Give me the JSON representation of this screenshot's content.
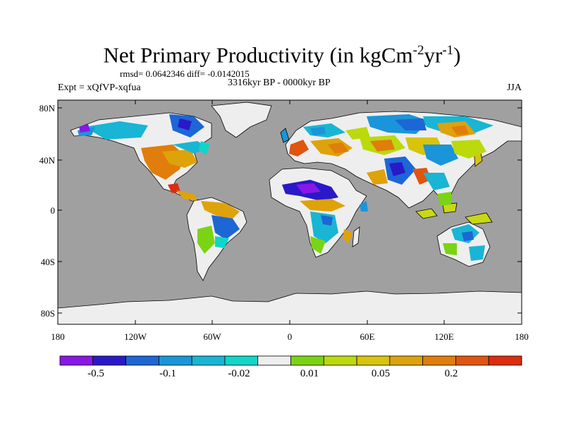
{
  "title": {
    "main": "Net Primary Productivity (in kgCm",
    "sup1": "-2",
    "mid": "yr",
    "sup2": "-1",
    "end": ")"
  },
  "stats_line": "rmsd= 0.0642346 diff= -0.0142015",
  "period": "3316kyr BP - 0000kyr BP",
  "experiment": "Expt = xQfVP-xqfua",
  "season": "JJA",
  "lat_labels": [
    "80N",
    "40N",
    "0",
    "40S",
    "80S"
  ],
  "lon_labels": [
    "180",
    "120W",
    "60W",
    "0",
    "60E",
    "120E",
    "180"
  ],
  "colorbar": {
    "colors": [
      "#8a17e6",
      "#2a19c8",
      "#1d66d6",
      "#1a95d9",
      "#19b5d4",
      "#0fd6c9",
      "#eeeeee",
      "#7ad414",
      "#bcd90c",
      "#d8c40b",
      "#dea20b",
      "#e07d0c",
      "#e05510",
      "#dc2d0e"
    ],
    "labels": [
      "-0.5",
      "-0.1",
      "-0.02",
      "0.01",
      "0.05",
      "0.2"
    ]
  },
  "colors": {
    "ocean": "#a0a0a0",
    "land_neutral": "#eeeeee",
    "ice": "#eeeeee"
  }
}
